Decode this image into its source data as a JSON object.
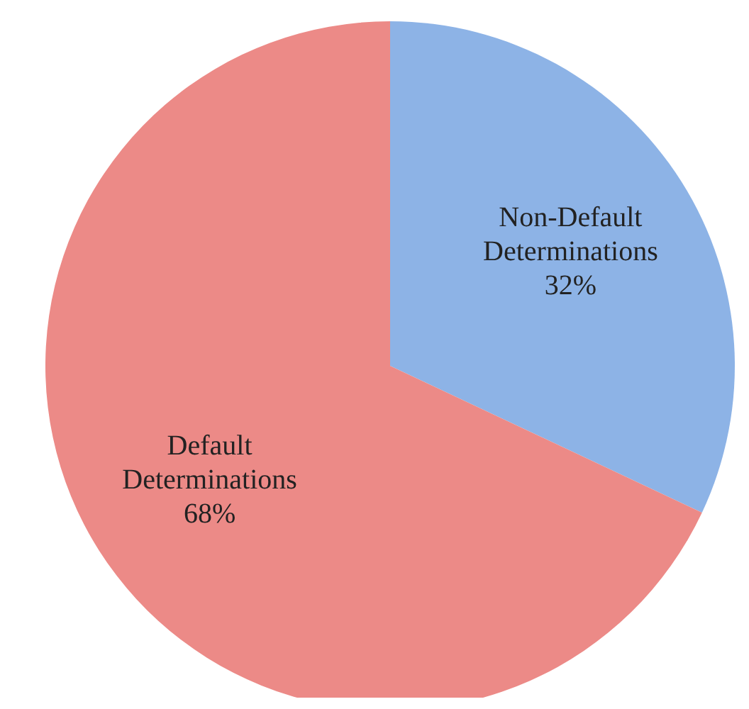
{
  "chart_data": {
    "type": "pie",
    "categories": [
      "Non-Default Determinations",
      "Default Determinations"
    ],
    "values": [
      32,
      68
    ],
    "colors": [
      "#8db3e6",
      "#ec8a87"
    ],
    "value_labels": [
      "32%",
      "68%"
    ]
  }
}
